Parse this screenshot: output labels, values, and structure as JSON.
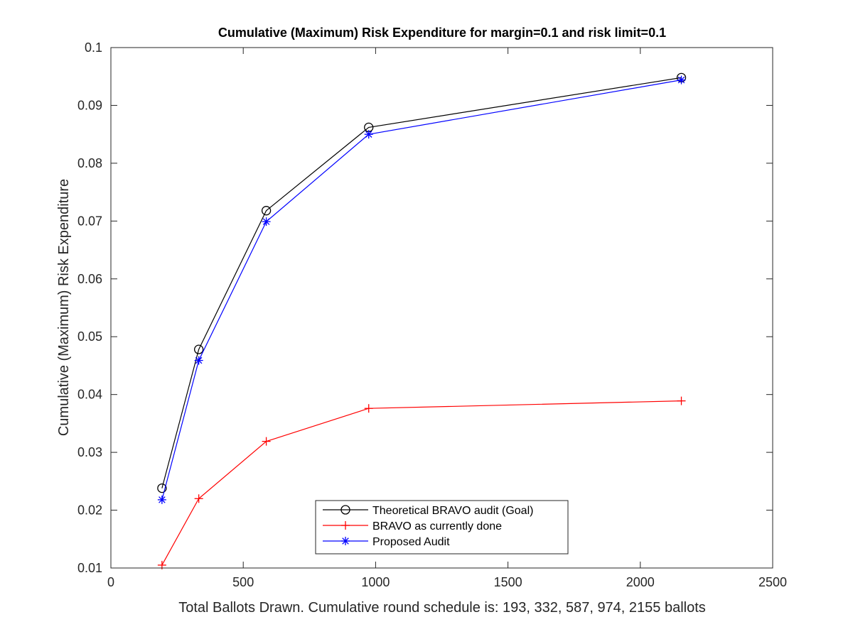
{
  "chart_data": {
    "type": "line",
    "title": "Cumulative (Maximum) Risk Expenditure for margin=0.1 and risk limit=0.1",
    "xlabel": "Total Ballots Drawn. Cumulative round schedule is: 193, 332, 587, 974, 2155 ballots",
    "ylabel": "Cumulative (Maximum) Risk Expenditure",
    "xlim": [
      0,
      2500
    ],
    "ylim": [
      0.01,
      0.1
    ],
    "xticks": [
      0,
      500,
      1000,
      1500,
      2000,
      2500
    ],
    "xtick_labels": [
      "0",
      "500",
      "1000",
      "1500",
      "2000",
      "2500"
    ],
    "yticks": [
      0.01,
      0.02,
      0.03,
      0.04,
      0.05,
      0.06,
      0.07,
      0.08,
      0.09,
      0.1
    ],
    "ytick_labels": [
      "0.01",
      "0.02",
      "0.03",
      "0.04",
      "0.05",
      "0.06",
      "0.07",
      "0.08",
      "0.09",
      "0.1"
    ],
    "grid": false,
    "legend_position": "bottom-center",
    "x": [
      193,
      332,
      587,
      974,
      2155
    ],
    "series": [
      {
        "name": "Theoretical BRAVO audit (Goal)",
        "color": "#000000",
        "marker": "circle",
        "values": [
          0.0238,
          0.0478,
          0.0718,
          0.0862,
          0.0948
        ]
      },
      {
        "name": "BRAVO as currently done",
        "color": "#ff0000",
        "marker": "plus",
        "values": [
          0.0105,
          0.022,
          0.0319,
          0.0376,
          0.0389
        ]
      },
      {
        "name": "Proposed Audit",
        "color": "#0000ff",
        "marker": "asterisk",
        "values": [
          0.0218,
          0.0459,
          0.0699,
          0.085,
          0.0944
        ]
      }
    ]
  }
}
